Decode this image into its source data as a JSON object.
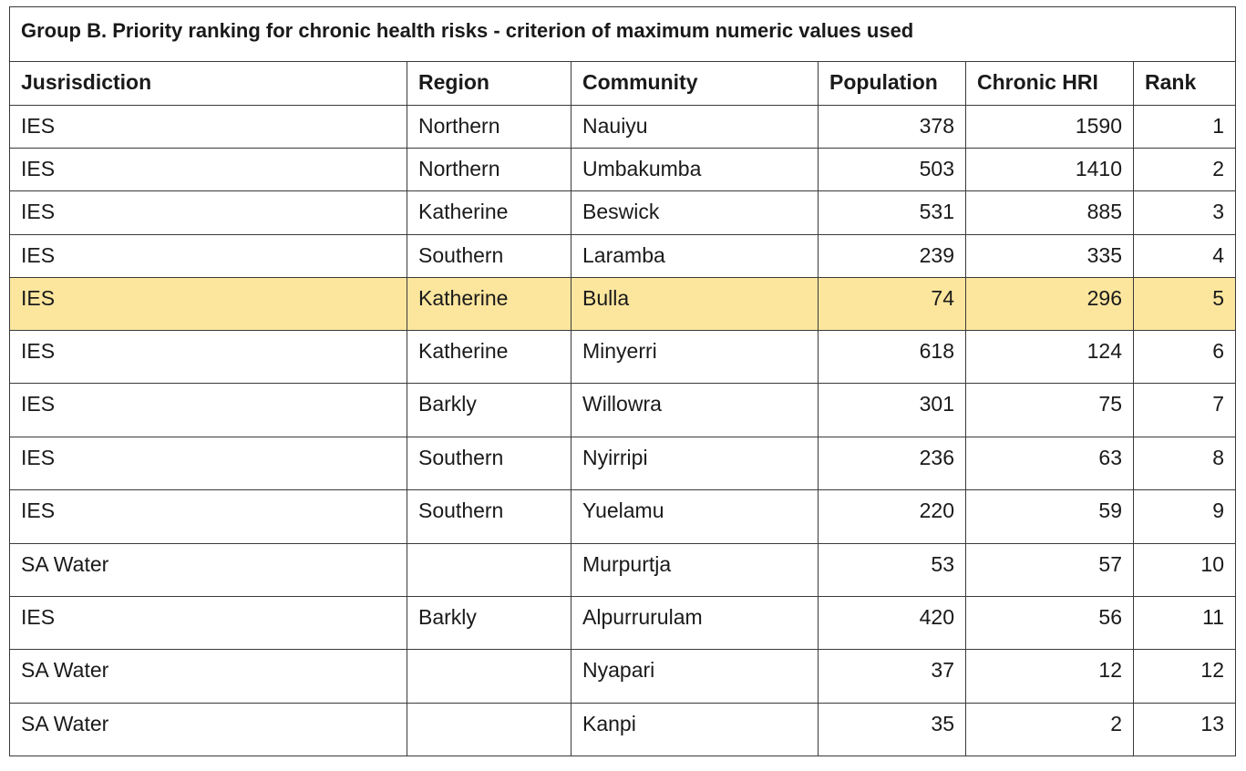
{
  "table": {
    "caption": "Group B. Priority ranking for chronic health risks - criterion of maximum numeric values used",
    "headers": [
      "Jusrisdiction",
      "Region",
      "Community",
      "Population",
      "Chronic HRI",
      "Rank"
    ],
    "highlight_color": "#fce69e",
    "highlighted_row": 4,
    "rows": [
      {
        "jurisdiction": "IES",
        "region": "Northern",
        "community": "Nauiyu",
        "population": "378",
        "chronic_hri": "1590",
        "rank": "1"
      },
      {
        "jurisdiction": "IES",
        "region": "Northern",
        "community": "Umbakumba",
        "population": "503",
        "chronic_hri": "1410",
        "rank": "2"
      },
      {
        "jurisdiction": "IES",
        "region": "Katherine",
        "community": "Beswick",
        "population": "531",
        "chronic_hri": "885",
        "rank": "3"
      },
      {
        "jurisdiction": "IES",
        "region": "Southern",
        "community": "Laramba",
        "population": "239",
        "chronic_hri": "335",
        "rank": "4"
      },
      {
        "jurisdiction": "IES",
        "region": "Katherine",
        "community": "Bulla",
        "population": "74",
        "chronic_hri": "296",
        "rank": "5"
      },
      {
        "jurisdiction": "IES",
        "region": "Katherine",
        "community": "Minyerri",
        "population": "618",
        "chronic_hri": "124",
        "rank": "6"
      },
      {
        "jurisdiction": "IES",
        "region": "Barkly",
        "community": "Willowra",
        "population": "301",
        "chronic_hri": "75",
        "rank": "7"
      },
      {
        "jurisdiction": "IES",
        "region": "Southern",
        "community": "Nyirripi",
        "population": "236",
        "chronic_hri": "63",
        "rank": "8"
      },
      {
        "jurisdiction": "IES",
        "region": "Southern",
        "community": "Yuelamu",
        "population": "220",
        "chronic_hri": "59",
        "rank": "9"
      },
      {
        "jurisdiction": "SA Water",
        "region": "",
        "community": "Murpurtja",
        "population": "53",
        "chronic_hri": "57",
        "rank": "10"
      },
      {
        "jurisdiction": "IES",
        "region": "Barkly",
        "community": "Alpurrurulam",
        "population": "420",
        "chronic_hri": "56",
        "rank": "11"
      },
      {
        "jurisdiction": "SA Water",
        "region": "",
        "community": "Nyapari",
        "population": "37",
        "chronic_hri": "12",
        "rank": "12"
      },
      {
        "jurisdiction": "SA Water",
        "region": "",
        "community": "Kanpi",
        "population": "35",
        "chronic_hri": "2",
        "rank": "13"
      }
    ]
  }
}
